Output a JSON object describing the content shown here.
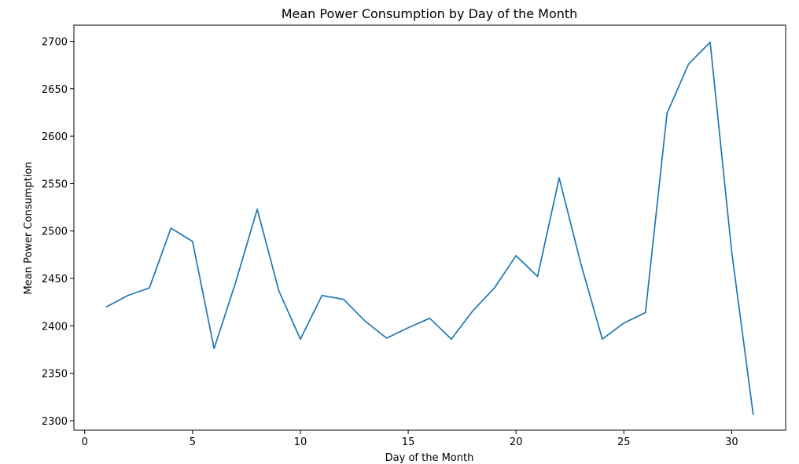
{
  "chart_data": {
    "type": "line",
    "title": "Mean Power Consumption by Day of the Month",
    "xlabel": "Day of the Month",
    "ylabel": "Mean Power Consumption",
    "xlim": [
      -0.5,
      32.5
    ],
    "ylim": [
      2290,
      2717
    ],
    "xticks": [
      0,
      5,
      10,
      15,
      20,
      25,
      30
    ],
    "yticks": [
      2300,
      2350,
      2400,
      2450,
      2500,
      2550,
      2600,
      2650,
      2700
    ],
    "grid": false,
    "line_color": "#1f77b4",
    "series": [
      {
        "x": [
          1,
          2,
          3,
          4,
          5,
          6,
          7,
          8,
          9,
          10,
          11,
          12,
          13,
          14,
          15,
          16,
          17,
          18,
          19,
          20,
          21,
          22,
          23,
          24,
          25,
          26,
          27,
          28,
          29,
          30,
          31
        ],
        "values": [
          2420,
          2432,
          2440,
          2503,
          2489,
          2376,
          2446,
          2523,
          2437,
          2386,
          2432,
          2428,
          2405,
          2387,
          2398,
          2408,
          2386,
          2416,
          2440,
          2474,
          2452,
          2556,
          2466,
          2386,
          2403,
          2414,
          2624,
          2676,
          2699,
          2478,
          2306
        ]
      }
    ]
  }
}
